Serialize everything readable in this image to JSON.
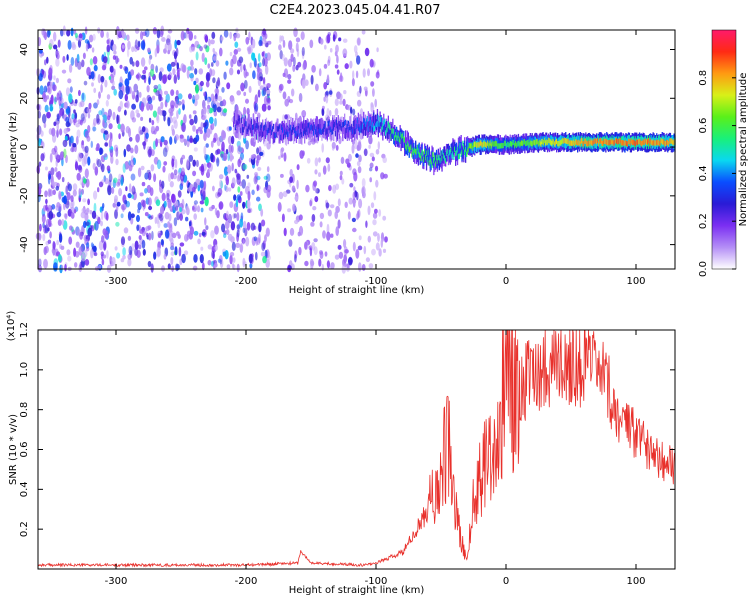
{
  "title": "C2E4.2023.045.04.41.R07",
  "colors": {
    "snr_line": "#e8302b",
    "specgram_dots": "#6a1fe0",
    "colormap": [
      "#ffffff",
      "#b48ef6",
      "#7b2ff2",
      "#2a1bd6",
      "#0a4dff",
      "#0ad8f0",
      "#19f07a",
      "#5af01a",
      "#d8f018",
      "#ff9a12",
      "#ff2a14",
      "#ff1a6b"
    ]
  },
  "chart_data": [
    {
      "type": "heatmap",
      "name": "spectrogram",
      "xlabel": "Height of straight line (km)",
      "ylabel": "Frequency (Hz)",
      "xlim": [
        -360,
        130
      ],
      "ylim": [
        -50,
        48
      ],
      "x_ticks": [
        -300,
        -200,
        -100,
        0,
        100
      ],
      "y_ticks": [
        -40,
        -20,
        0,
        20,
        40
      ],
      "colorbar": {
        "label": "Normalized spectral amplitude",
        "range": [
          0,
          1
        ],
        "ticks": [
          "0.0",
          "0.2",
          "0.4",
          "0.6",
          "0.8"
        ],
        "tick_values": [
          0,
          0.2,
          0.4,
          0.6,
          0.8
        ]
      },
      "noise_regions": [
        {
          "x_range": [
            -360,
            -182
          ],
          "density": 1.0
        },
        {
          "x_range": [
            -175,
            -100
          ],
          "density": 0.55
        },
        {
          "x_range": [
            -100,
            -92
          ],
          "density": 0.3
        }
      ],
      "signal_track": {
        "x": [
          -210,
          -180,
          -150,
          -120,
          -100,
          -85,
          -70,
          -55,
          -45,
          -35,
          -20,
          0,
          30,
          60,
          90,
          130
        ],
        "freq": [
          10,
          6,
          7,
          8,
          10,
          5,
          -2,
          -6,
          -3,
          -1,
          1,
          1,
          2,
          2,
          2,
          2
        ],
        "amplitude": [
          0.25,
          0.3,
          0.32,
          0.3,
          0.45,
          0.55,
          0.6,
          0.55,
          0.5,
          0.55,
          0.75,
          0.55,
          0.7,
          0.8,
          0.85,
          0.8
        ]
      }
    },
    {
      "type": "line",
      "name": "snr",
      "xlabel": "Height of straight line (km)",
      "ylabel": "SNR (10 * v/v)",
      "multiplier": "(x10⁴)",
      "xlim": [
        -360,
        130
      ],
      "ylim": [
        0,
        1.2
      ],
      "x_ticks": [
        -300,
        -200,
        -100,
        0,
        100
      ],
      "y_ticks": [
        "0.2",
        "0.4",
        "0.6",
        "0.8",
        "1.0",
        "1.2"
      ],
      "y_tick_values": [
        0.2,
        0.4,
        0.6,
        0.8,
        1.0,
        1.2
      ],
      "x": [
        -360,
        -300,
        -200,
        -160,
        -158,
        -150,
        -110,
        -100,
        -80,
        -70,
        -60,
        -50,
        -45,
        -40,
        -35,
        -30,
        -25,
        -20,
        -15,
        -10,
        -5,
        0,
        10,
        20,
        30,
        40,
        50,
        60,
        70,
        80,
        90,
        100,
        110,
        120,
        130
      ],
      "values": [
        0.02,
        0.02,
        0.02,
        0.03,
        0.09,
        0.03,
        0.02,
        0.03,
        0.08,
        0.18,
        0.3,
        0.45,
        0.65,
        0.35,
        0.15,
        0.05,
        0.32,
        0.48,
        0.62,
        0.55,
        0.72,
        0.85,
        0.9,
        0.98,
        1.02,
        1.04,
        1.04,
        1.02,
        1.0,
        0.88,
        0.72,
        0.66,
        0.62,
        0.56,
        0.5
      ],
      "noise_amplitude": 0.35
    }
  ]
}
